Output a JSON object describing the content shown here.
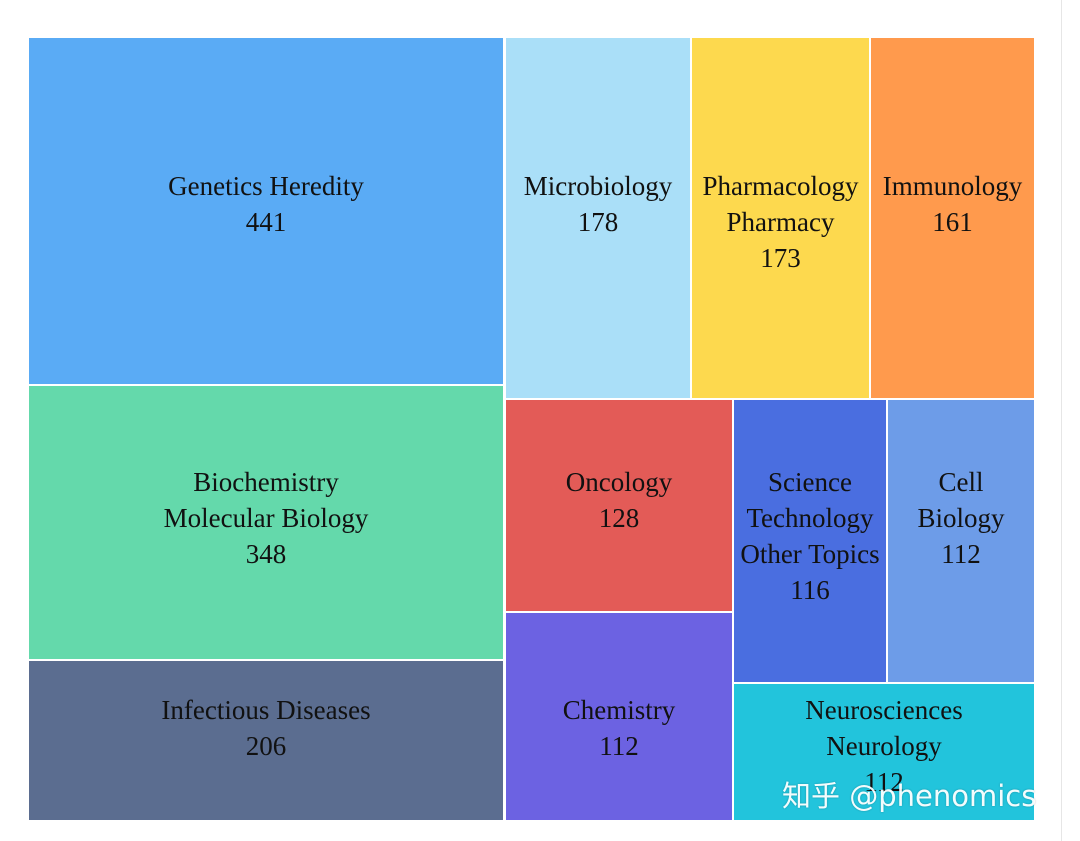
{
  "chart_data": {
    "type": "treemap",
    "title": "",
    "nodes": [
      {
        "name": "Genetics Heredity",
        "lines": [
          "Genetics Heredity"
        ],
        "value": 441,
        "color": "#5aabf5"
      },
      {
        "name": "Biochemistry Molecular Biology",
        "lines": [
          "Biochemistry",
          "Molecular Biology"
        ],
        "value": 348,
        "color": "#64d9ab"
      },
      {
        "name": "Infectious Diseases",
        "lines": [
          "Infectious Diseases"
        ],
        "value": 206,
        "color": "#5b6d90"
      },
      {
        "name": "Microbiology",
        "lines": [
          "Microbiology"
        ],
        "value": 178,
        "color": "#aadff8"
      },
      {
        "name": "Pharmacology Pharmacy",
        "lines": [
          "Pharmacology",
          "Pharmacy"
        ],
        "value": 173,
        "color": "#fdd94e"
      },
      {
        "name": "Immunology",
        "lines": [
          "Immunology"
        ],
        "value": 161,
        "color": "#ff9a4d"
      },
      {
        "name": "Oncology",
        "lines": [
          "Oncology"
        ],
        "value": 128,
        "color": "#e35b57"
      },
      {
        "name": "Chemistry",
        "lines": [
          "Chemistry"
        ],
        "value": 112,
        "color": "#6c62e2"
      },
      {
        "name": "Science Technology Other Topics",
        "lines": [
          "Science",
          "Technology",
          "Other Topics"
        ],
        "value": 116,
        "color": "#4a6ee0"
      },
      {
        "name": "Cell Biology",
        "lines": [
          "Cell",
          "Biology"
        ],
        "value": 112,
        "color": "#6d9ce8"
      },
      {
        "name": "Neurosciences Neurology",
        "lines": [
          "Neurosciences",
          "Neurology"
        ],
        "value": 112,
        "color": "#22c4dc"
      }
    ]
  },
  "watermark": "知乎 @phenomics"
}
